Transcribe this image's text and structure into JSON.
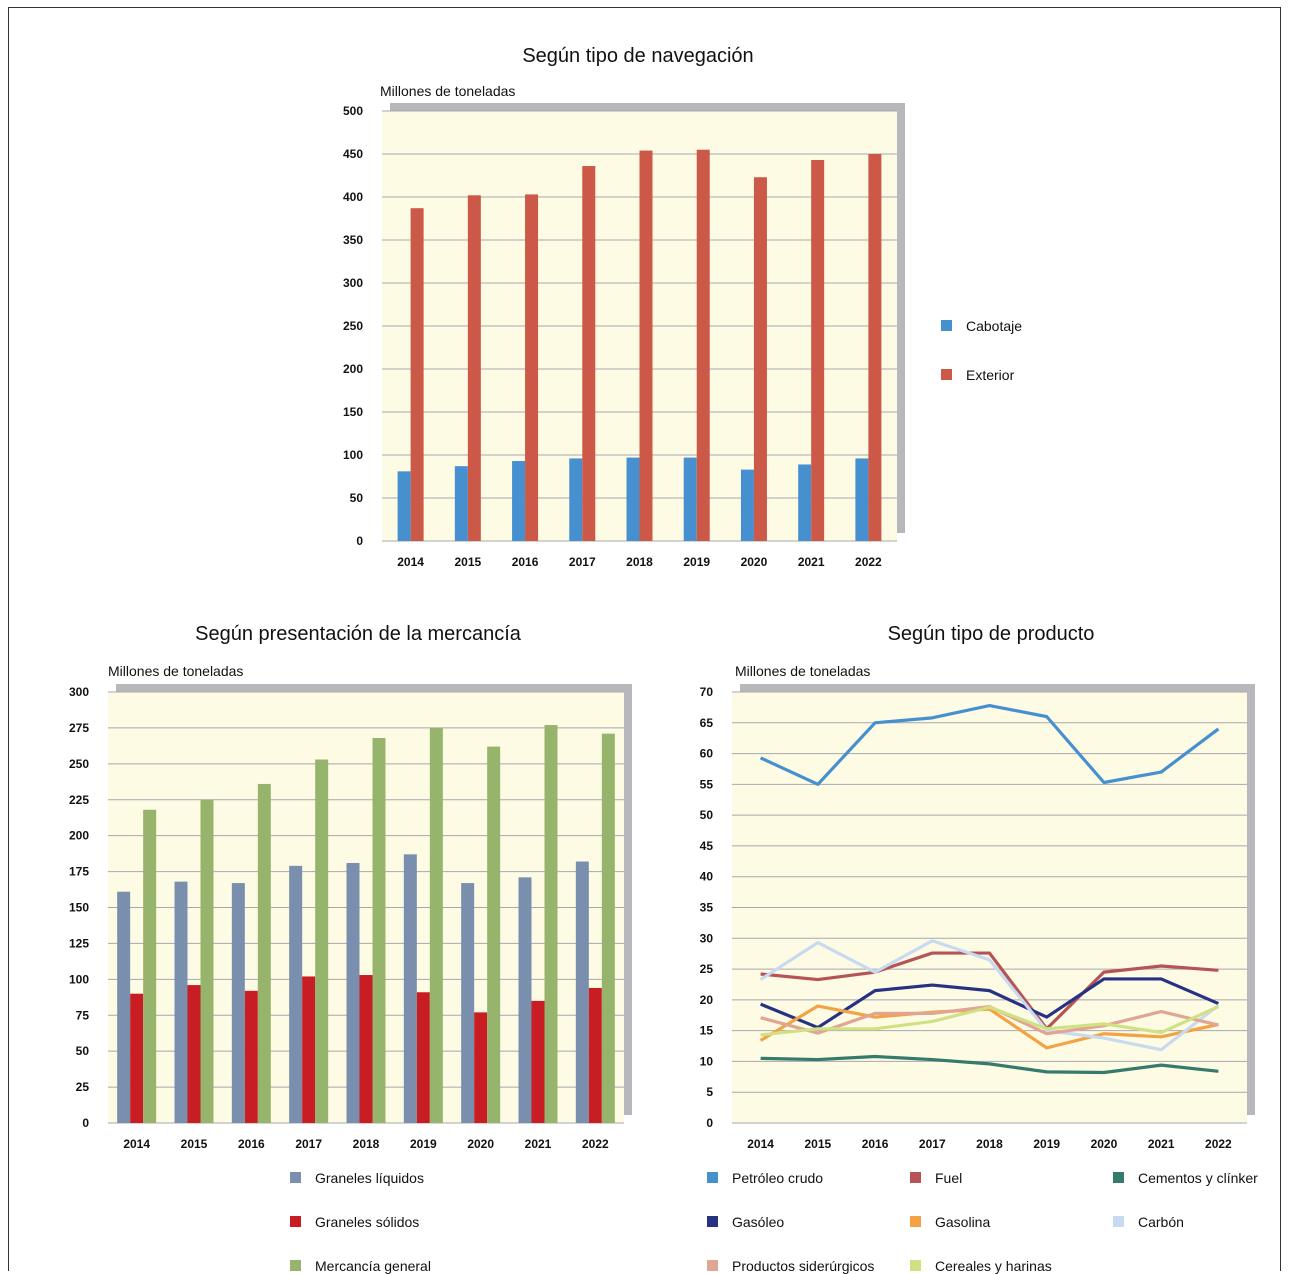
{
  "chart_data": [
    {
      "type": "bar",
      "title": "Según tipo de navegación",
      "ylabel": "Millones de toneladas",
      "categories": [
        "2014",
        "2015",
        "2016",
        "2017",
        "2018",
        "2019",
        "2020",
        "2021",
        "2022"
      ],
      "yticks": [
        "0",
        "50",
        "100",
        "150",
        "200",
        "250",
        "300",
        "350",
        "400",
        "450",
        "500"
      ],
      "ylim": [
        0,
        500
      ],
      "legend_position": "right",
      "series": [
        {
          "name": "Cabotaje",
          "color": "#4690cf",
          "values": [
            81,
            87,
            93,
            96,
            97,
            97,
            83,
            89,
            96
          ]
        },
        {
          "name": "Exterior",
          "color": "#cc5847",
          "values": [
            387,
            402,
            403,
            436,
            454,
            455,
            423,
            443,
            450
          ]
        }
      ]
    },
    {
      "type": "bar",
      "title": "Según presentación de la mercancía",
      "ylabel": "Millones de toneladas",
      "categories": [
        "2014",
        "2015",
        "2016",
        "2017",
        "2018",
        "2019",
        "2020",
        "2021",
        "2022"
      ],
      "yticks": [
        "0",
        "25",
        "50",
        "75",
        "100",
        "125",
        "150",
        "175",
        "200",
        "225",
        "250",
        "275",
        "300"
      ],
      "ylim": [
        0,
        300
      ],
      "legend_position": "bottom",
      "series": [
        {
          "name": "Graneles líquidos",
          "color": "#7a8fad",
          "values": [
            161,
            168,
            167,
            179,
            181,
            187,
            167,
            171,
            182
          ]
        },
        {
          "name": "Graneles sólidos",
          "color": "#c81d23",
          "values": [
            90,
            96,
            92,
            102,
            103,
            91,
            77,
            85,
            94
          ]
        },
        {
          "name": "Mercancía general",
          "color": "#96b46b",
          "values": [
            218,
            225,
            236,
            253,
            268,
            275,
            262,
            277,
            271
          ]
        }
      ]
    },
    {
      "type": "line",
      "title": "Según tipo de producto",
      "ylabel": "Millones de toneladas",
      "categories": [
        "2014",
        "2015",
        "2016",
        "2017",
        "2018",
        "2019",
        "2020",
        "2021",
        "2022"
      ],
      "yticks": [
        "0",
        "5",
        "10",
        "15",
        "20",
        "25",
        "30",
        "35",
        "40",
        "45",
        "50",
        "55",
        "60",
        "65",
        "70"
      ],
      "ylim": [
        0,
        70
      ],
      "legend_position": "bottom",
      "series": [
        {
          "name": "Petróleo crudo",
          "color": "#4690cf",
          "values": [
            59.3,
            55.0,
            65.0,
            65.8,
            67.8,
            66.0,
            55.3,
            57.0,
            64.0
          ]
        },
        {
          "name": "Fuel",
          "color": "#b55456",
          "values": [
            24.2,
            23.3,
            24.5,
            27.6,
            27.6,
            15.3,
            24.5,
            25.5,
            24.8
          ]
        },
        {
          "name": "Cementos y clínker",
          "color": "#357a6c",
          "values": [
            10.5,
            10.3,
            10.8,
            10.3,
            9.6,
            8.3,
            8.2,
            9.4,
            8.4
          ]
        },
        {
          "name": "Gasóleo",
          "color": "#283283",
          "values": [
            19.3,
            15.5,
            21.5,
            22.4,
            21.5,
            17.2,
            23.4,
            23.4,
            19.4
          ]
        },
        {
          "name": "Gasolina",
          "color": "#f3a345",
          "values": [
            13.4,
            19.0,
            17.2,
            18.0,
            18.5,
            12.2,
            14.5,
            14.0,
            16.0
          ]
        },
        {
          "name": "Carbón",
          "color": "#c7daf0",
          "values": [
            23.3,
            29.3,
            24.5,
            29.6,
            26.5,
            15.0,
            13.8,
            11.9,
            19.1
          ]
        },
        {
          "name": "Productos siderúrgicos",
          "color": "#e0a593",
          "values": [
            17.1,
            14.6,
            17.8,
            17.8,
            18.9,
            14.5,
            15.8,
            18.1,
            15.9
          ]
        },
        {
          "name": "Cereales y harinas",
          "color": "#d0e184",
          "values": [
            14.3,
            15.3,
            15.3,
            16.5,
            18.8,
            15.3,
            16.1,
            14.7,
            18.9
          ]
        }
      ]
    }
  ]
}
